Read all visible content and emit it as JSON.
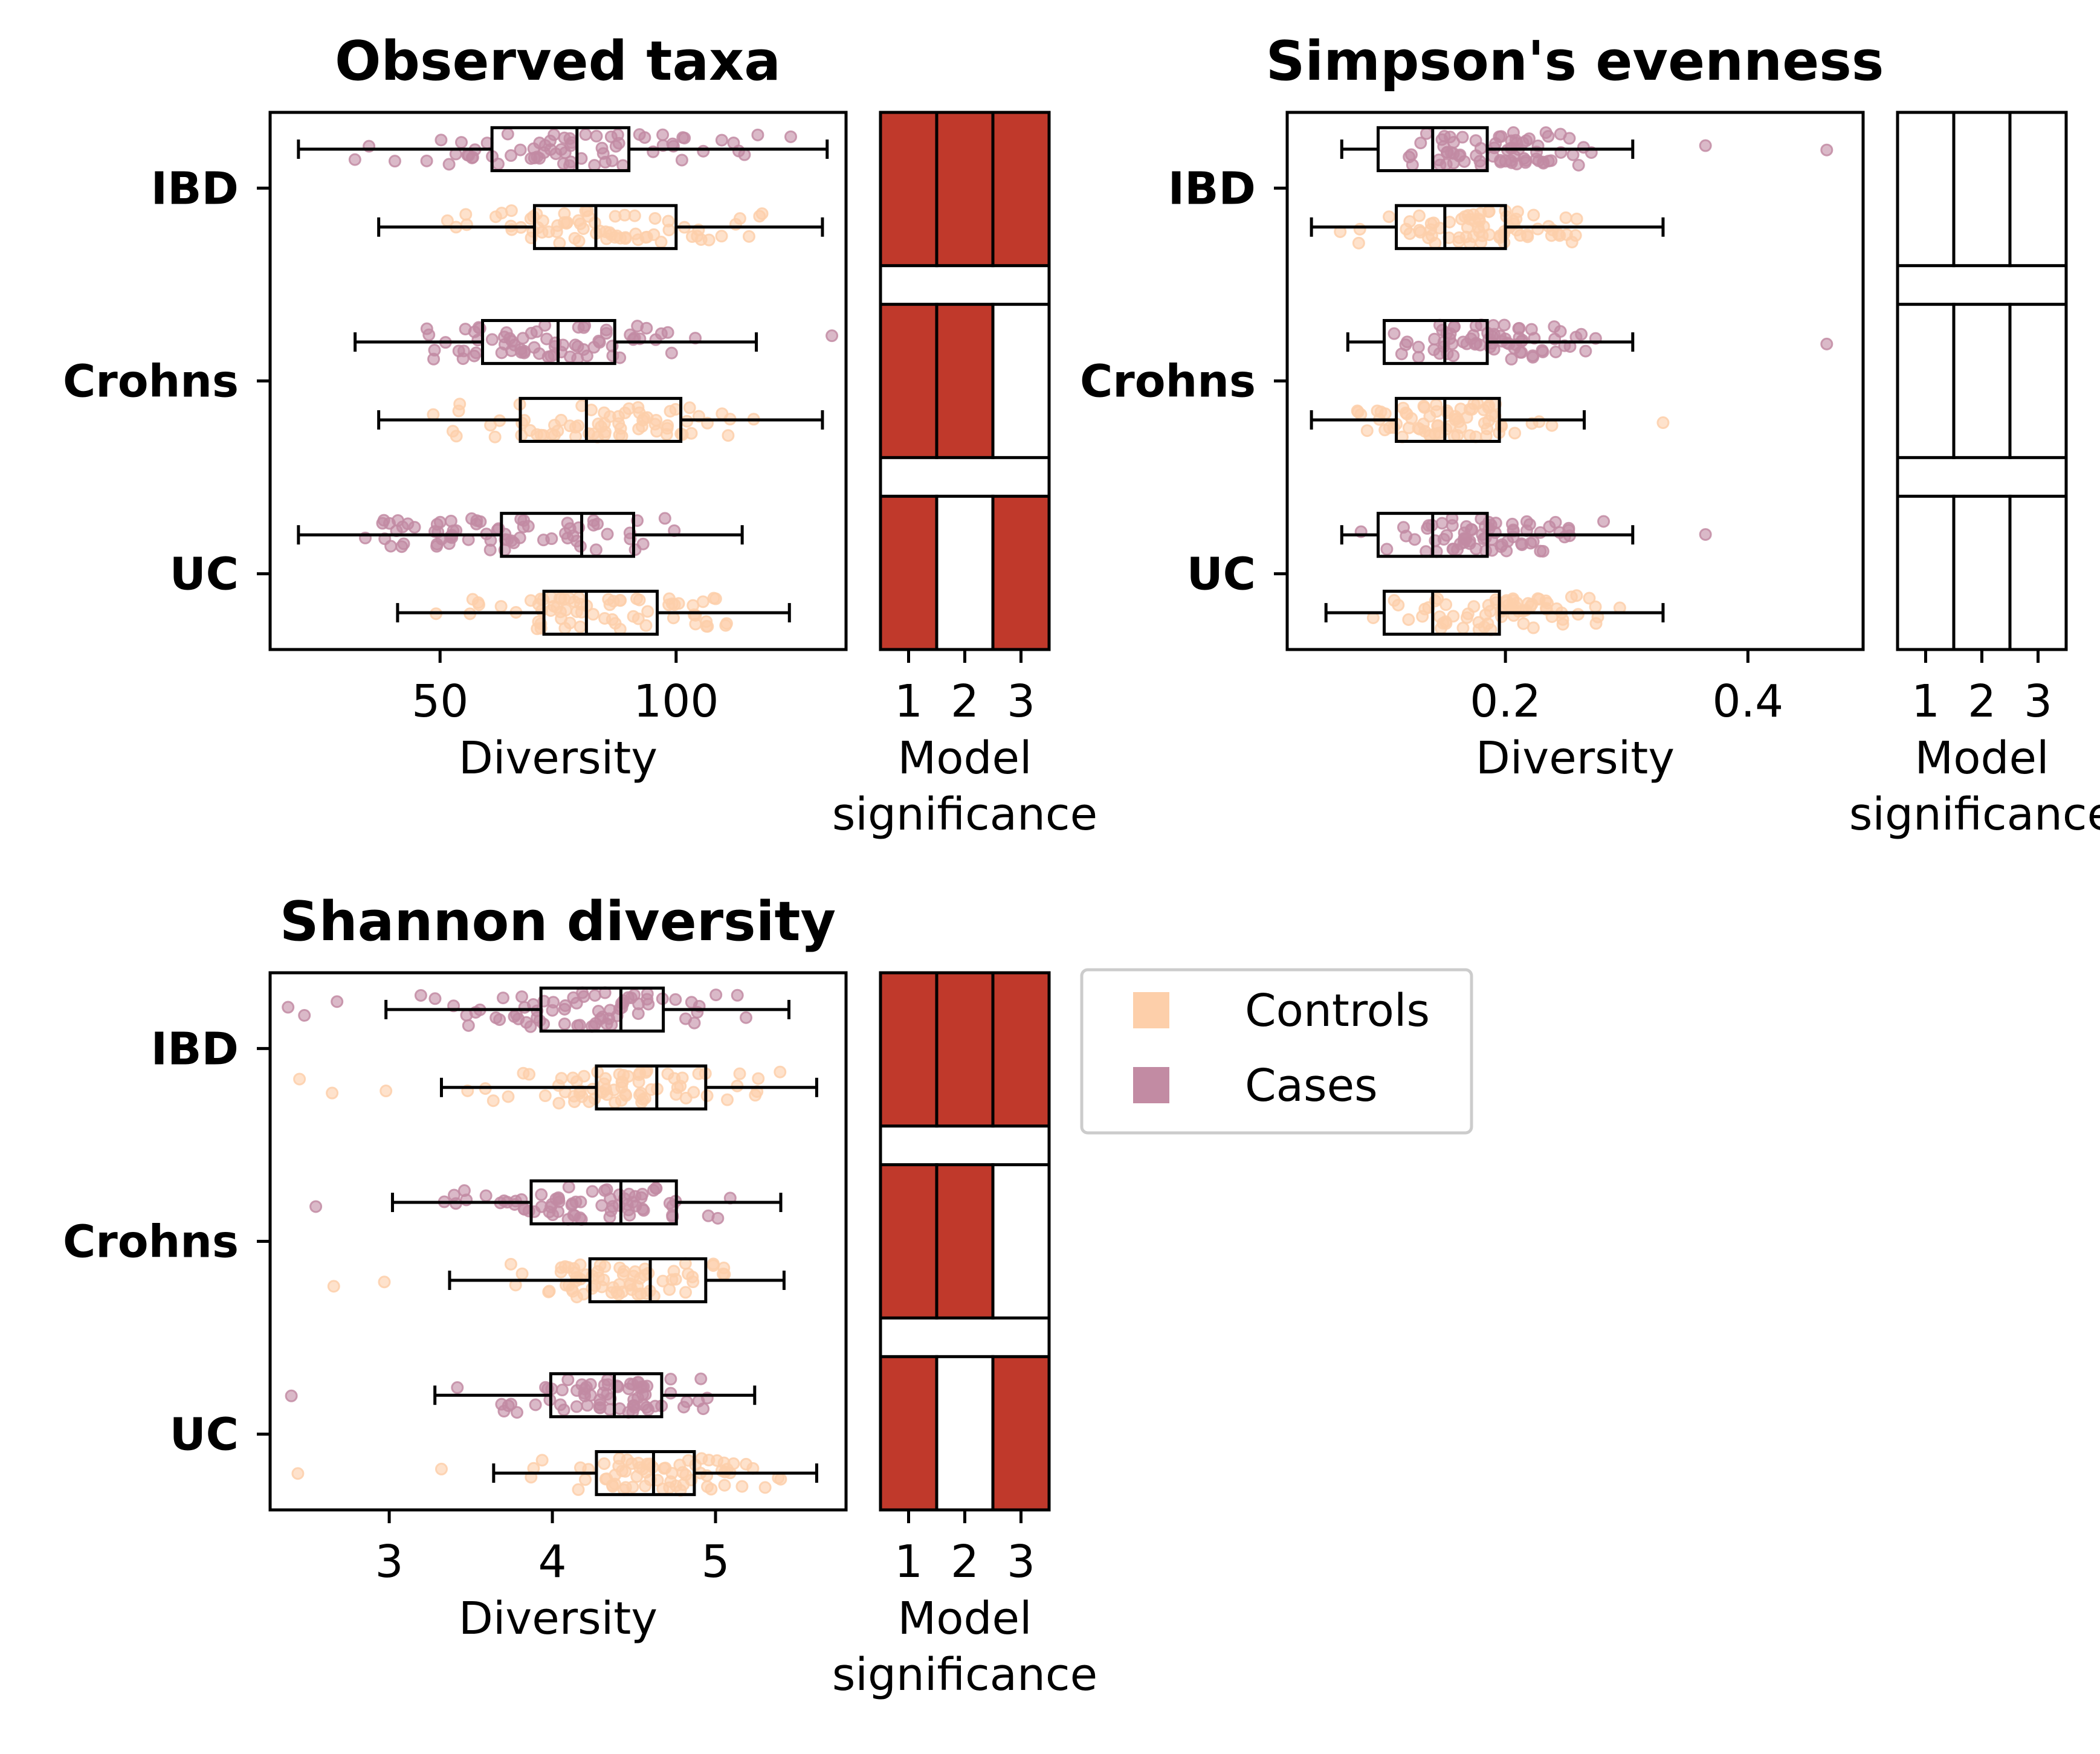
{
  "figure": {
    "legend": [
      {
        "label": "Controls",
        "color": "#fdcfaa"
      },
      {
        "label": "Cases",
        "color": "#c28ba3"
      }
    ],
    "significant_color": "#c0392b",
    "model_axis_label": "Model\nsignificance",
    "model_ticks": [
      "1",
      "2",
      "3"
    ]
  },
  "chart_data": [
    {
      "type": "box",
      "title": "Observed taxa",
      "xlabel": "Diversity",
      "categories": [
        "IBD",
        "Crohns",
        "UC"
      ],
      "xlim": [
        14,
        136
      ],
      "xticks": [
        50,
        100
      ],
      "xtick_labels": [
        "50",
        "100"
      ],
      "series": [
        {
          "name": "Cases",
          "boxes": [
            {
              "whislo": 20,
              "q1": 61,
              "med": 79,
              "q3": 90,
              "whishi": 132,
              "fliers": []
            },
            {
              "whislo": 32,
              "q1": 59,
              "med": 75,
              "q3": 87,
              "whishi": 117,
              "fliers": [
                133
              ]
            },
            {
              "whislo": 20,
              "q1": 63,
              "med": 80,
              "q3": 91,
              "whishi": 114,
              "fliers": []
            }
          ]
        },
        {
          "name": "Controls",
          "boxes": [
            {
              "whislo": 37,
              "q1": 70,
              "med": 83,
              "q3": 100,
              "whishi": 131,
              "fliers": []
            },
            {
              "whislo": 37,
              "q1": 67,
              "med": 81,
              "q3": 101,
              "whishi": 131,
              "fliers": []
            },
            {
              "whislo": 41,
              "q1": 72,
              "med": 81,
              "q3": 96,
              "whishi": 124,
              "fliers": []
            }
          ]
        }
      ],
      "model_significance": [
        [
          true,
          true,
          true
        ],
        [
          true,
          true,
          false
        ],
        [
          true,
          false,
          true
        ]
      ]
    },
    {
      "type": "box",
      "title": "Simpson's evenness",
      "xlabel": "Diversity",
      "categories": [
        "IBD",
        "Crohns",
        "UC"
      ],
      "xlim": [
        0.02,
        0.495
      ],
      "xticks": [
        0.2,
        0.4
      ],
      "xtick_labels": [
        "0.2",
        "0.4"
      ],
      "series": [
        {
          "name": "Cases",
          "boxes": [
            {
              "whislo": 0.065,
              "q1": 0.095,
              "med": 0.14,
              "q3": 0.185,
              "whishi": 0.305,
              "fliers": [
                0.465,
                0.365
              ]
            },
            {
              "whislo": 0.07,
              "q1": 0.1,
              "med": 0.15,
              "q3": 0.185,
              "whishi": 0.305,
              "fliers": [
                0.465
              ]
            },
            {
              "whislo": 0.065,
              "q1": 0.095,
              "med": 0.14,
              "q3": 0.185,
              "whishi": 0.305,
              "fliers": [
                0.365
              ]
            }
          ]
        },
        {
          "name": "Controls",
          "boxes": [
            {
              "whislo": 0.04,
              "q1": 0.11,
              "med": 0.15,
              "q3": 0.2,
              "whishi": 0.33,
              "fliers": []
            },
            {
              "whislo": 0.04,
              "q1": 0.11,
              "med": 0.15,
              "q3": 0.195,
              "whishi": 0.265,
              "fliers": [
                0.33
              ]
            },
            {
              "whislo": 0.052,
              "q1": 0.1,
              "med": 0.14,
              "q3": 0.195,
              "whishi": 0.33,
              "fliers": []
            }
          ]
        }
      ],
      "model_significance": [
        [
          false,
          false,
          false
        ],
        [
          false,
          false,
          false
        ],
        [
          false,
          false,
          false
        ]
      ]
    },
    {
      "type": "box",
      "title": "Shannon diversity",
      "xlabel": "Diversity",
      "categories": [
        "IBD",
        "Crohns",
        "UC"
      ],
      "xlim": [
        2.27,
        5.8
      ],
      "xticks": [
        3,
        4,
        5
      ],
      "xtick_labels": [
        "3",
        "4",
        "5"
      ],
      "series": [
        {
          "name": "Cases",
          "boxes": [
            {
              "whislo": 2.98,
              "q1": 3.93,
              "med": 4.42,
              "q3": 4.68,
              "whishi": 5.45,
              "fliers": [
                2.38,
                2.48,
                2.68
              ]
            },
            {
              "whislo": 3.02,
              "q1": 3.87,
              "med": 4.42,
              "q3": 4.76,
              "whishi": 5.4,
              "fliers": [
                2.55
              ]
            },
            {
              "whislo": 3.28,
              "q1": 3.99,
              "med": 4.38,
              "q3": 4.67,
              "whishi": 5.24,
              "fliers": [
                2.4
              ]
            }
          ]
        },
        {
          "name": "Controls",
          "boxes": [
            {
              "whislo": 3.32,
              "q1": 4.27,
              "med": 4.64,
              "q3": 4.94,
              "whishi": 5.62,
              "fliers": [
                2.45,
                2.65,
                2.98
              ]
            },
            {
              "whislo": 3.37,
              "q1": 4.23,
              "med": 4.6,
              "q3": 4.94,
              "whishi": 5.42,
              "fliers": [
                2.66,
                2.97
              ]
            },
            {
              "whislo": 3.64,
              "q1": 4.27,
              "med": 4.62,
              "q3": 4.87,
              "whishi": 5.62,
              "fliers": [
                2.44,
                3.32
              ]
            }
          ]
        }
      ],
      "model_significance": [
        [
          true,
          true,
          true
        ],
        [
          true,
          true,
          false
        ],
        [
          true,
          false,
          true
        ]
      ]
    }
  ]
}
